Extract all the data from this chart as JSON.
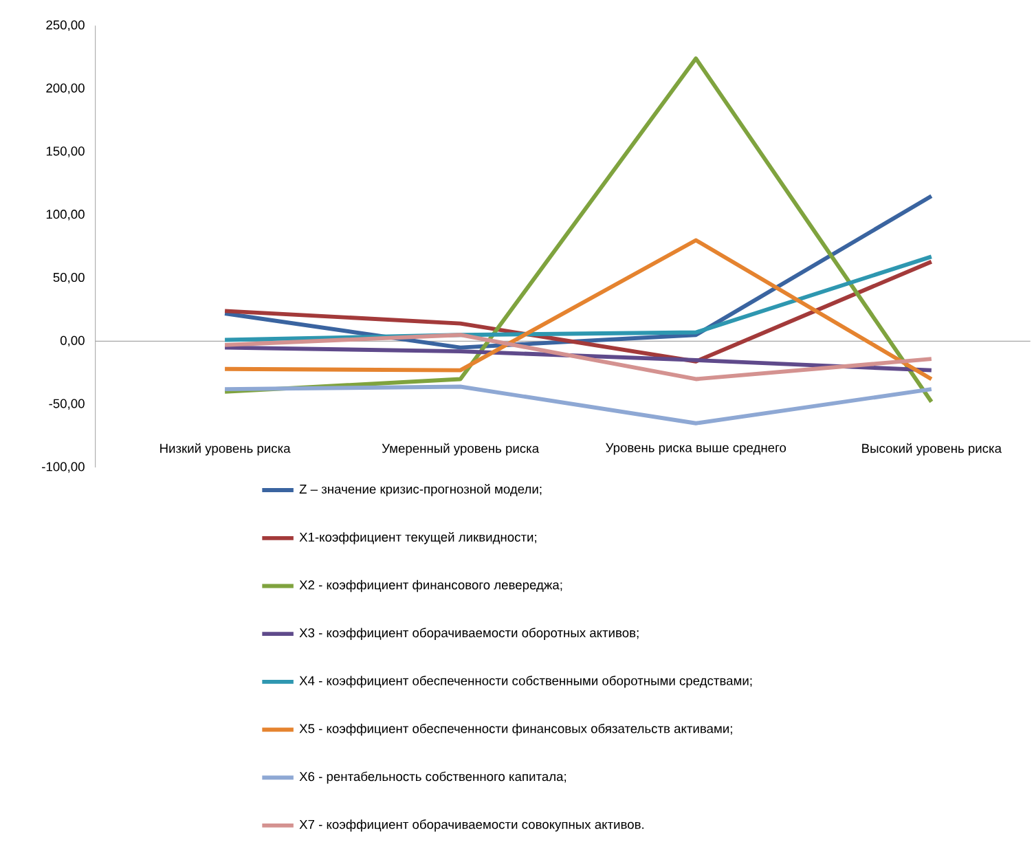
{
  "chart_data": {
    "type": "line",
    "categories": [
      "Низкий уровень риска",
      "Умеренный уровень риска",
      "Уровень риска выше среднего",
      "Высокий уровень риска"
    ],
    "series": [
      {
        "name": "Z – значение кризис-прогнозной модели;",
        "color": "#3a64a0",
        "values": [
          22,
          -5,
          5,
          115
        ]
      },
      {
        "name": "X1-коэффициент текущей ликвидности;",
        "color": "#a33a3a",
        "values": [
          24,
          14,
          -16,
          63
        ]
      },
      {
        "name": "X2  - коэффициент финансового левереджа;",
        "color": "#7fa33e",
        "values": [
          -40,
          -30,
          224,
          -48
        ]
      },
      {
        "name": "X3  - коэффициент оборачиваемости оборотных активов;",
        "color": "#5f4a8b",
        "values": [
          -5,
          -8,
          -15,
          -23
        ]
      },
      {
        "name": "X4  - коэффициент обеспеченности собственными оборотными средствами;",
        "color": "#2e97b0",
        "values": [
          1,
          5,
          7,
          67
        ]
      },
      {
        "name": "X5  - коэффициент обеспеченности финансовых обязательств активами;",
        "color": "#e5832f",
        "values": [
          -22,
          -23,
          80,
          -30
        ]
      },
      {
        "name": "X6  - рентабельность собственного капитала;",
        "color": "#8ea8d4",
        "values": [
          -38,
          -36,
          -65,
          -38
        ]
      },
      {
        "name": "X7  - коэффициент оборачиваемости совокупных активов.",
        "color": "#d49290",
        "values": [
          -3,
          5,
          -30,
          -14
        ]
      }
    ],
    "ylim": [
      -100,
      250
    ],
    "yticks": [
      {
        "value": -100,
        "label": "-100,00"
      },
      {
        "value": -50,
        "label": "-50,00"
      },
      {
        "value": 0,
        "label": "0,00"
      },
      {
        "value": 50,
        "label": "50,00"
      },
      {
        "value": 100,
        "label": "100,00"
      },
      {
        "value": 150,
        "label": "150,00"
      },
      {
        "value": 200,
        "label": "200,00"
      },
      {
        "value": 250,
        "label": "250,00"
      }
    ],
    "legend": "bottom",
    "marker": "none",
    "line_style": "solid"
  }
}
